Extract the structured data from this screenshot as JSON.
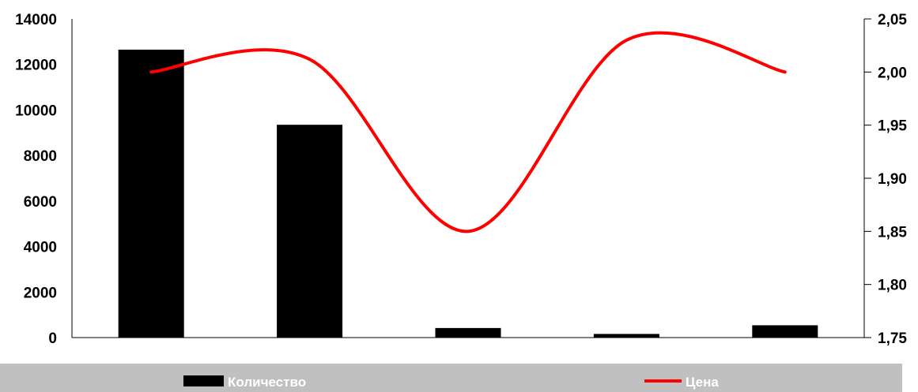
{
  "chart_data": {
    "type": "bar",
    "categories": [
      "",
      "",
      "",
      "",
      ""
    ],
    "series": [
      {
        "name": "Количество",
        "type": "bar",
        "axis": "left",
        "color": "#000000",
        "values": [
          12650,
          9350,
          420,
          160,
          540
        ]
      },
      {
        "name": "Цена",
        "type": "line",
        "axis": "right",
        "color": "#ff0000",
        "values": [
          2.0,
          2.012,
          1.85,
          2.03,
          2.0
        ]
      }
    ],
    "y_left": {
      "ylim": [
        0,
        14000
      ],
      "ticks": [
        "0",
        "2000",
        "4000",
        "6000",
        "8000",
        "10000",
        "12000",
        "14000"
      ]
    },
    "y_right": {
      "ylim": [
        1.75,
        2.05
      ],
      "ticks": [
        "1,75",
        "1,80",
        "1,85",
        "1,90",
        "1,95",
        "2,00",
        "2,05"
      ]
    },
    "grid": false,
    "legend": {
      "position": "bottom",
      "background": "#c0c0c0"
    }
  }
}
